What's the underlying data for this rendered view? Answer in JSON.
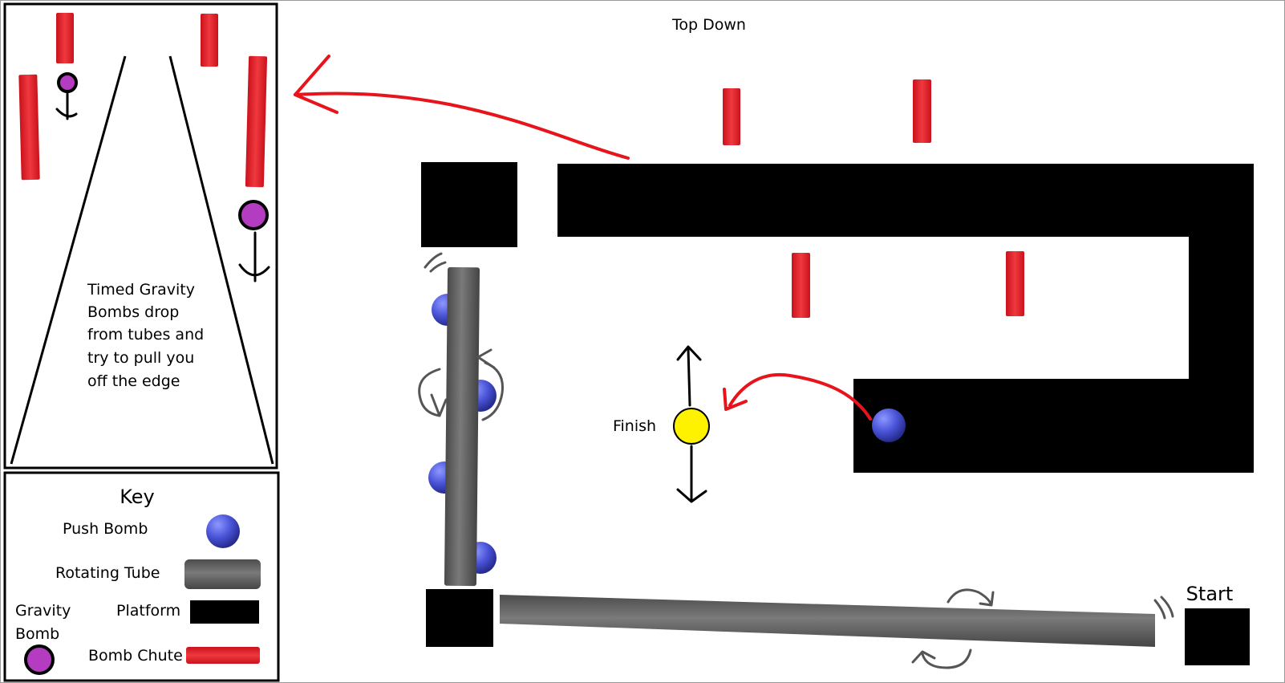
{
  "title": "Top Down",
  "finish_label": "Finish",
  "start_label": "Start",
  "inset_note": [
    "Timed Gravity",
    "Bombs drop",
    "from tubes and",
    "try to pull you",
    "off the edge"
  ],
  "key": {
    "title": "Key",
    "push_bomb": "Push Bomb",
    "rotating_tube": "Rotating Tube",
    "gravity_bomb_line1": "Gravity",
    "gravity_bomb_line2": "Bomb",
    "platform": "Platform",
    "bomb_chute": "Bomb Chute"
  },
  "colors": {
    "platform": "#000000",
    "bomb_chute": "#e8262f",
    "push_bomb": "#4a54d8",
    "gravity_bomb": "#b43cc0",
    "finish": "#fff200",
    "rotating_tube": "#5f5f5f",
    "arrow_red": "#e8141c"
  }
}
